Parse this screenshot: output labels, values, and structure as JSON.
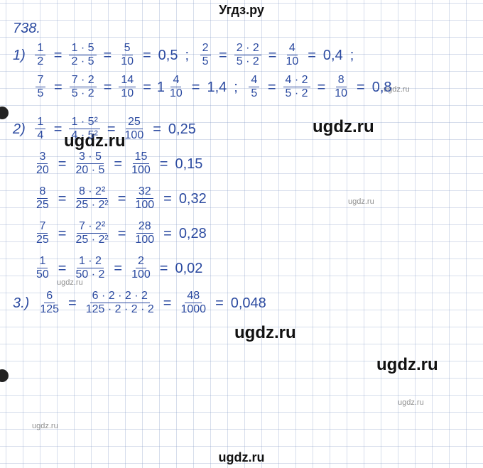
{
  "header": "Угдз.ру",
  "footer": "ugdz.ru",
  "watermarks": {
    "big": "ugdz.ru",
    "small": "ugdz.ru"
  },
  "problem_number": "738.",
  "ink_color": "#2b4aa0",
  "grid_color": "rgba(140,160,200,0.35)",
  "lines": {
    "l1a": {
      "idx": "1)",
      "parts": [
        {
          "type": "frac",
          "t": "1",
          "b": "2"
        },
        {
          "type": "eq"
        },
        {
          "type": "frac",
          "t": "1 · 5",
          "b": "2 · 5"
        },
        {
          "type": "eq"
        },
        {
          "type": "frac",
          "t": "5",
          "b": "10"
        },
        {
          "type": "eq"
        },
        {
          "type": "val",
          "v": "0,5"
        },
        {
          "type": "semi"
        },
        {
          "type": "frac",
          "t": "2",
          "b": "5"
        },
        {
          "type": "eq"
        },
        {
          "type": "frac",
          "t": "2 · 2",
          "b": "5 · 2"
        },
        {
          "type": "eq"
        },
        {
          "type": "frac",
          "t": "4",
          "b": "10"
        },
        {
          "type": "eq"
        },
        {
          "type": "val",
          "v": "0,4"
        },
        {
          "type": "semi"
        }
      ]
    },
    "l1b": {
      "parts": [
        {
          "type": "frac",
          "t": "7",
          "b": "5"
        },
        {
          "type": "eq"
        },
        {
          "type": "frac",
          "t": "7 · 2",
          "b": "5 · 2"
        },
        {
          "type": "eq"
        },
        {
          "type": "frac",
          "t": "14",
          "b": "10"
        },
        {
          "type": "eq"
        },
        {
          "type": "mixed",
          "w": "1",
          "t": "4",
          "b": "10"
        },
        {
          "type": "eq"
        },
        {
          "type": "val",
          "v": "1,4"
        },
        {
          "type": "semi"
        },
        {
          "type": "frac",
          "t": "4",
          "b": "5"
        },
        {
          "type": "eq"
        },
        {
          "type": "frac",
          "t": "4 · 2",
          "b": "5 · 2"
        },
        {
          "type": "eq"
        },
        {
          "type": "frac",
          "t": "8",
          "b": "10"
        },
        {
          "type": "eq"
        },
        {
          "type": "val",
          "v": "0,8"
        }
      ]
    },
    "l2a": {
      "idx": "2)",
      "parts": [
        {
          "type": "frac",
          "t": "1",
          "b": "4"
        },
        {
          "type": "eq"
        },
        {
          "type": "frac",
          "t": "1 · 5²",
          "b": "4 · 5²"
        },
        {
          "type": "eq"
        },
        {
          "type": "frac",
          "t": "25",
          "b": "100"
        },
        {
          "type": "eq"
        },
        {
          "type": "val",
          "v": "0,25"
        }
      ]
    },
    "l2b": {
      "parts": [
        {
          "type": "frac",
          "t": "3",
          "b": "20"
        },
        {
          "type": "eq"
        },
        {
          "type": "frac",
          "t": "3 · 5",
          "b": "20 · 5"
        },
        {
          "type": "eq"
        },
        {
          "type": "frac",
          "t": "15",
          "b": "100"
        },
        {
          "type": "eq"
        },
        {
          "type": "val",
          "v": "0,15"
        }
      ]
    },
    "l2c": {
      "parts": [
        {
          "type": "frac",
          "t": "8",
          "b": "25"
        },
        {
          "type": "eq"
        },
        {
          "type": "frac",
          "t": "8 · 2²",
          "b": "25 · 2²"
        },
        {
          "type": "eq"
        },
        {
          "type": "frac",
          "t": "32",
          "b": "100"
        },
        {
          "type": "eq"
        },
        {
          "type": "val",
          "v": "0,32"
        }
      ]
    },
    "l2d": {
      "parts": [
        {
          "type": "frac",
          "t": "7",
          "b": "25"
        },
        {
          "type": "eq"
        },
        {
          "type": "frac",
          "t": "7 · 2²",
          "b": "25 · 2²"
        },
        {
          "type": "eq"
        },
        {
          "type": "frac",
          "t": "28",
          "b": "100"
        },
        {
          "type": "eq"
        },
        {
          "type": "val",
          "v": "0,28"
        }
      ]
    },
    "l2e": {
      "parts": [
        {
          "type": "frac",
          "t": "1",
          "b": "50"
        },
        {
          "type": "eq"
        },
        {
          "type": "frac",
          "t": "1 · 2",
          "b": "50 · 2"
        },
        {
          "type": "eq"
        },
        {
          "type": "frac",
          "t": "2",
          "b": "100"
        },
        {
          "type": "eq"
        },
        {
          "type": "val",
          "v": "0,02"
        }
      ]
    },
    "l3a": {
      "idx": "3.)",
      "parts": [
        {
          "type": "frac",
          "t": "6",
          "b": "125"
        },
        {
          "type": "eq"
        },
        {
          "type": "frac",
          "t": "6 · 2 · 2 · 2",
          "b": "125 · 2 · 2 · 2"
        },
        {
          "type": "eq"
        },
        {
          "type": "frac",
          "t": "48",
          "b": "1000"
        },
        {
          "type": "eq"
        },
        {
          "type": "val",
          "v": "0,048"
        }
      ]
    }
  }
}
